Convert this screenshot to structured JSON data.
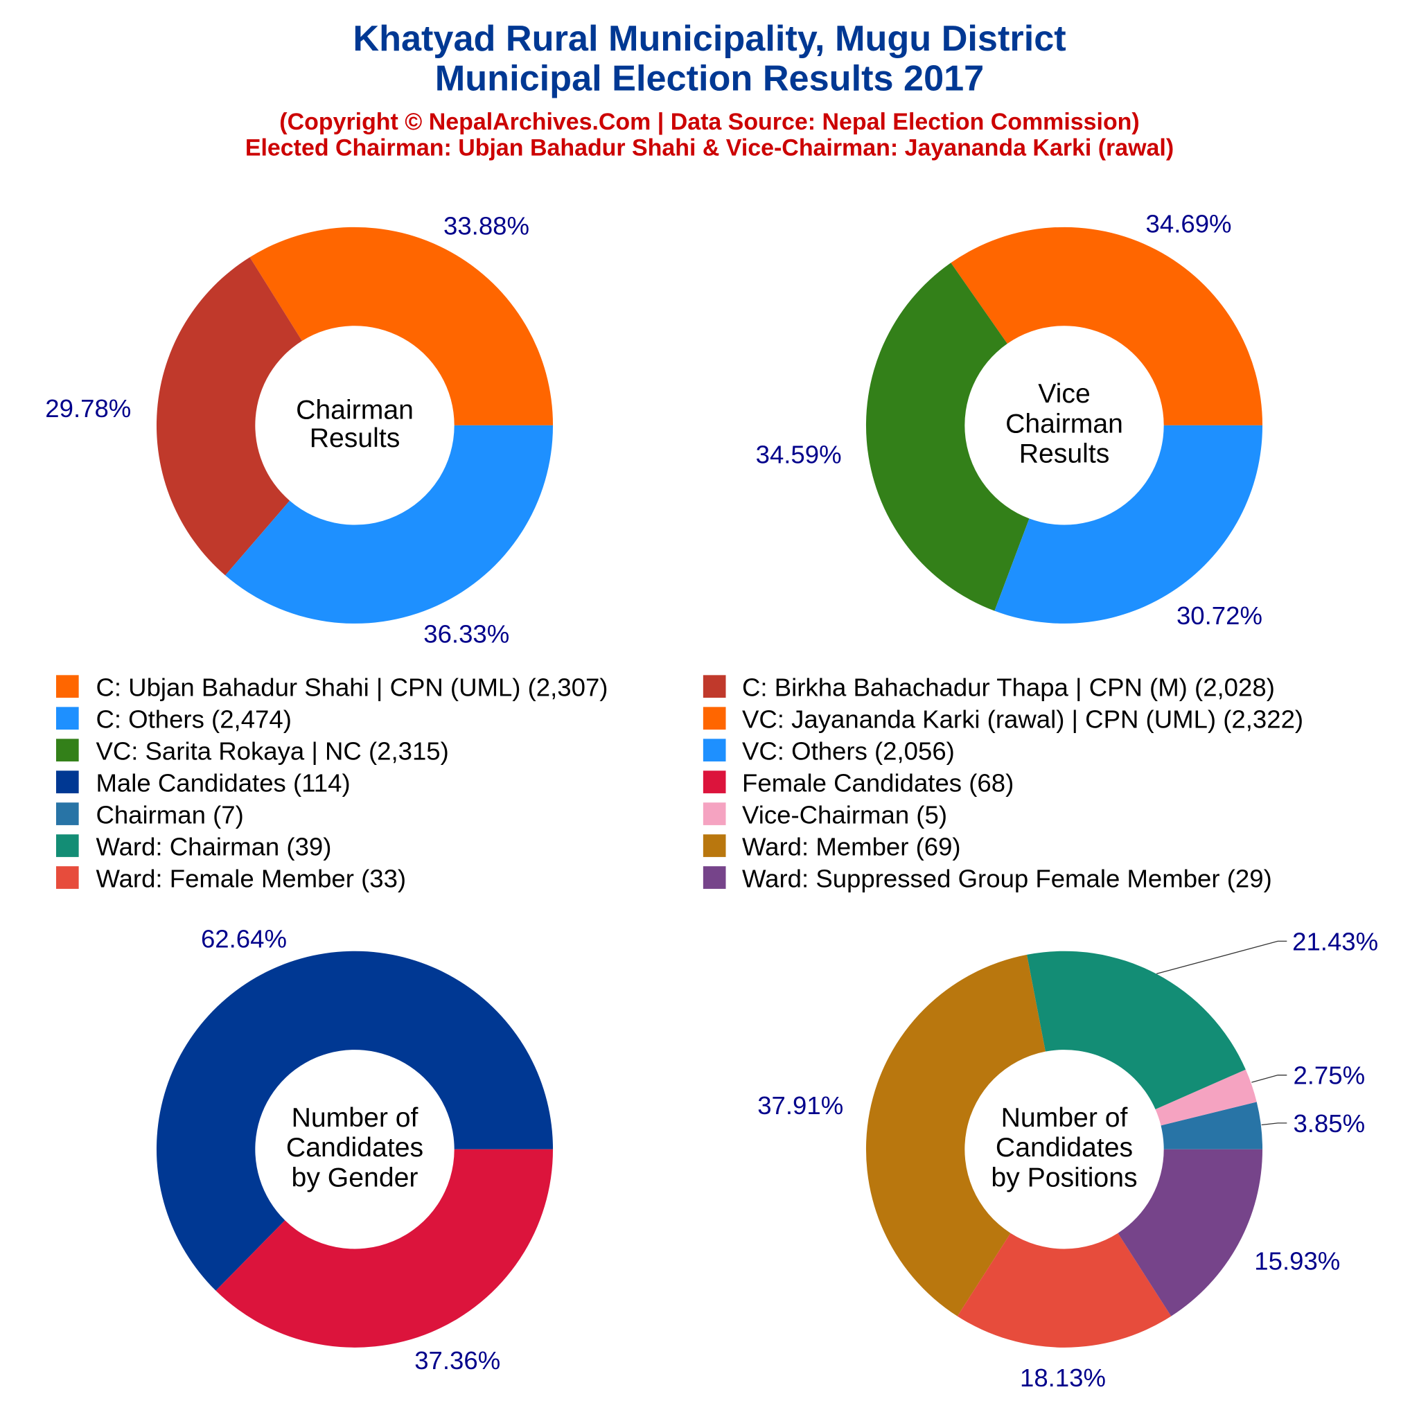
{
  "title_lines": [
    "Khatyad Rural Municipality, Mugu District",
    "Municipal Election Results 2017"
  ],
  "subtitle_lines": [
    "(Copyright © NepalArchives.Com | Data Source: Nepal Election Commission)",
    "Elected Chairman: Ubjan Bahadur Shahi & Vice-Chairman: Jayananda Karki (rawal)"
  ],
  "label_color": "#00008B",
  "chart_data": [
    {
      "type": "pie",
      "donut": true,
      "center_label": [
        "Chairman",
        "Results"
      ],
      "categories": [
        "C: Ubjan Bahadur Shahi | CPN (UML)",
        "C: Birkha Bahachadur Thapa | CPN (M)",
        "C: Others"
      ],
      "values": [
        2307,
        2028,
        2474
      ],
      "percent_labels": [
        "33.88%",
        "29.78%",
        "36.33%"
      ],
      "colors": [
        "#FF6600",
        "#C0392B",
        "#1E90FF"
      ]
    },
    {
      "type": "pie",
      "donut": true,
      "center_label": [
        "Vice",
        "Chairman",
        "Results"
      ],
      "categories": [
        "VC: Jayananda Karki (rawal) | CPN (UML)",
        "VC: Sarita Rokaya | NC",
        "VC: Others"
      ],
      "values": [
        2322,
        2315,
        2056
      ],
      "percent_labels": [
        "34.69%",
        "34.59%",
        "30.72%"
      ],
      "colors": [
        "#FF6600",
        "#338019",
        "#1E90FF"
      ]
    },
    {
      "type": "pie",
      "donut": true,
      "center_label": [
        "Number of",
        "Candidates",
        "by Gender"
      ],
      "categories": [
        "Male Candidates",
        "Female Candidates"
      ],
      "values": [
        114,
        68
      ],
      "percent_labels": [
        "62.64%",
        "37.36%"
      ],
      "colors": [
        "#003893",
        "#DC143C"
      ]
    },
    {
      "type": "pie",
      "donut": true,
      "center_label": [
        "Number of",
        "Candidates",
        "by Positions"
      ],
      "categories": [
        "Chairman",
        "Vice-Chairman",
        "Ward: Chairman",
        "Ward: Member",
        "Ward: Female Member",
        "Ward: Suppressed Group Female Member"
      ],
      "values": [
        7,
        5,
        39,
        69,
        33,
        29
      ],
      "percent_labels": [
        "3.85%",
        "2.75%",
        "21.43%",
        "37.91%",
        "18.13%",
        "15.93%"
      ],
      "colors": [
        "#2874A6",
        "#F5A3C1",
        "#138D75",
        "#B9770E",
        "#E74C3C",
        "#76448A"
      ]
    }
  ],
  "legend": [
    {
      "label": "C: Ubjan Bahadur Shahi | CPN (UML) (2,307)",
      "color": "#FF6600"
    },
    {
      "label": "C: Birkha Bahachadur Thapa | CPN (M) (2,028)",
      "color": "#C0392B"
    },
    {
      "label": "C: Others (2,474)",
      "color": "#1E90FF"
    },
    {
      "label": "VC: Jayananda Karki (rawal) | CPN (UML) (2,322)",
      "color": "#FF6600"
    },
    {
      "label": "VC: Sarita Rokaya | NC (2,315)",
      "color": "#338019"
    },
    {
      "label": "VC: Others (2,056)",
      "color": "#1E90FF"
    },
    {
      "label": "Male Candidates (114)",
      "color": "#003893"
    },
    {
      "label": "Female Candidates (68)",
      "color": "#DC143C"
    },
    {
      "label": "Chairman (7)",
      "color": "#2874A6"
    },
    {
      "label": "Vice-Chairman (5)",
      "color": "#F5A3C1"
    },
    {
      "label": "Ward: Chairman (39)",
      "color": "#138D75"
    },
    {
      "label": "Ward: Member (69)",
      "color": "#B9770E"
    },
    {
      "label": "Ward: Female Member (33)",
      "color": "#E74C3C"
    },
    {
      "label": "Ward: Suppressed Group Female Member (29)",
      "color": "#76448A"
    }
  ]
}
